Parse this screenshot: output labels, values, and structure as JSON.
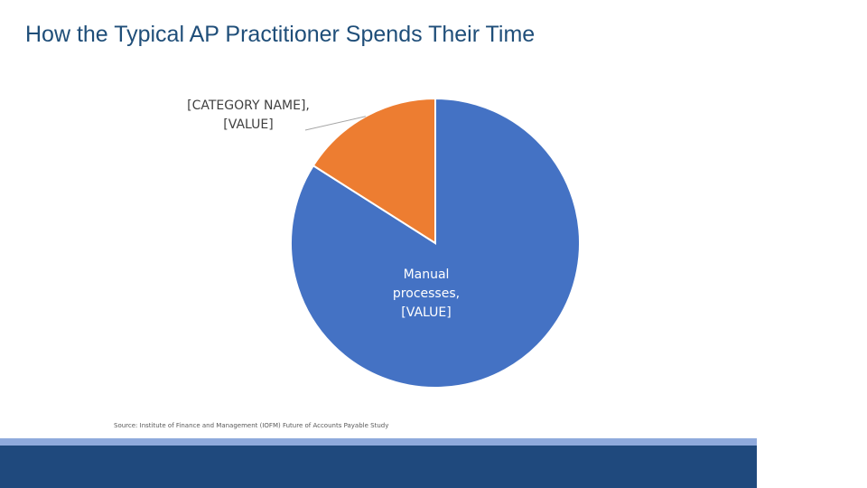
{
  "title": "How the Typical AP Practitioner Spends Their Time",
  "chart_data": {
    "type": "pie",
    "values": [
      84,
      16
    ],
    "value_labels": [
      "Manual processes, [VALUE]",
      "[CATEGORY NAME], [VALUE]"
    ],
    "colors": [
      "#4472c4",
      "#ed7d31"
    ],
    "start_angle": 0,
    "direction": "clockwise"
  },
  "source": "Source: Institute of Finance and Management (IOFM) Future of Accounts Payable Study"
}
